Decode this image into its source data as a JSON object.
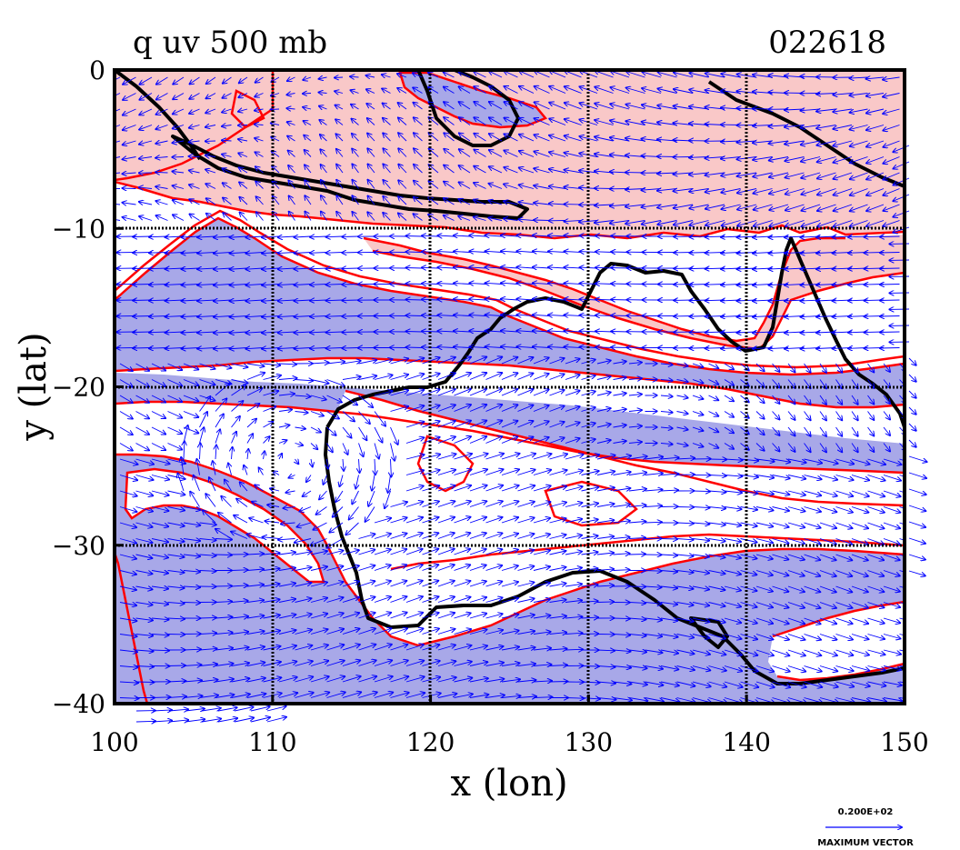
{
  "title": {
    "left": "q uv 500 mb",
    "right": "022618"
  },
  "axes": {
    "xlabel": "x (lon)",
    "ylabel": "y (lat)",
    "x_ticks": [
      100,
      110,
      120,
      130,
      140,
      150
    ],
    "y_ticks": [
      0,
      -10,
      -20,
      -30,
      -40
    ],
    "x_tick_labels": [
      "100",
      "110",
      "120",
      "130",
      "140",
      "150"
    ],
    "y_tick_labels": [
      "0",
      "−10",
      "−20",
      "−30",
      "−40"
    ],
    "lon_range": [
      100,
      150
    ],
    "lat_range": [
      -40,
      0
    ],
    "grid": true
  },
  "legend": {
    "value": "0.200E+02",
    "label": "MAXIMUM VECTOR"
  },
  "colors": {
    "moist_fill": "#f9c8c8",
    "dry_fill": "#a8a8e8",
    "contour": "#ff0000",
    "coast": "#000000",
    "vector": "#0000ff",
    "grid": "#000000"
  }
}
